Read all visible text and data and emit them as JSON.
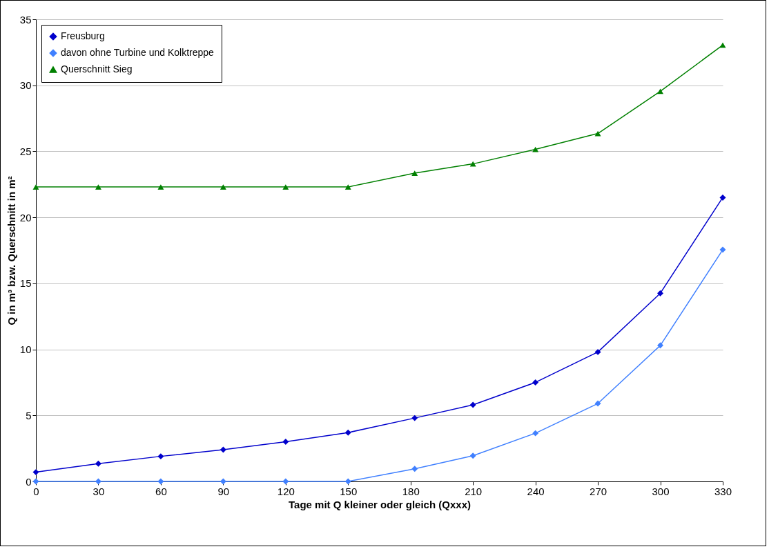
{
  "chart_data": {
    "type": "line",
    "xlabel": "Tage mit Q kleiner oder gleich (Qxxx)",
    "ylabel": "Q in m³ bzw. Querschnitt in m²",
    "x": [
      0,
      30,
      60,
      90,
      120,
      150,
      182,
      210,
      240,
      270,
      300,
      330
    ],
    "xlim": [
      0,
      330
    ],
    "xticks": [
      0,
      30,
      60,
      90,
      120,
      150,
      180,
      210,
      240,
      270,
      300,
      330
    ],
    "ylim": [
      0,
      35
    ],
    "yticks": [
      0,
      5,
      10,
      15,
      20,
      25,
      30,
      35
    ],
    "grid": "y",
    "legend": "top left",
    "series": [
      {
        "name": "Freusburg",
        "color": "#0000cc",
        "marker": "diamond",
        "values": [
          0.7,
          1.35,
          1.9,
          2.4,
          3.0,
          3.7,
          4.8,
          5.8,
          7.5,
          9.8,
          14.25,
          21.5
        ]
      },
      {
        "name": "davon ohne Turbine und Kolktreppe",
        "color": "#4080ff",
        "marker": "diamond",
        "values": [
          0,
          0,
          0,
          0,
          0,
          0,
          0.95,
          1.95,
          3.65,
          5.9,
          10.3,
          17.55
        ]
      },
      {
        "name": "Querschnitt Sieg",
        "color": "#008000",
        "marker": "triangle",
        "values": [
          22.3,
          22.3,
          22.3,
          22.3,
          22.3,
          22.3,
          23.35,
          24.05,
          25.15,
          26.35,
          29.55,
          33.05
        ]
      }
    ]
  }
}
